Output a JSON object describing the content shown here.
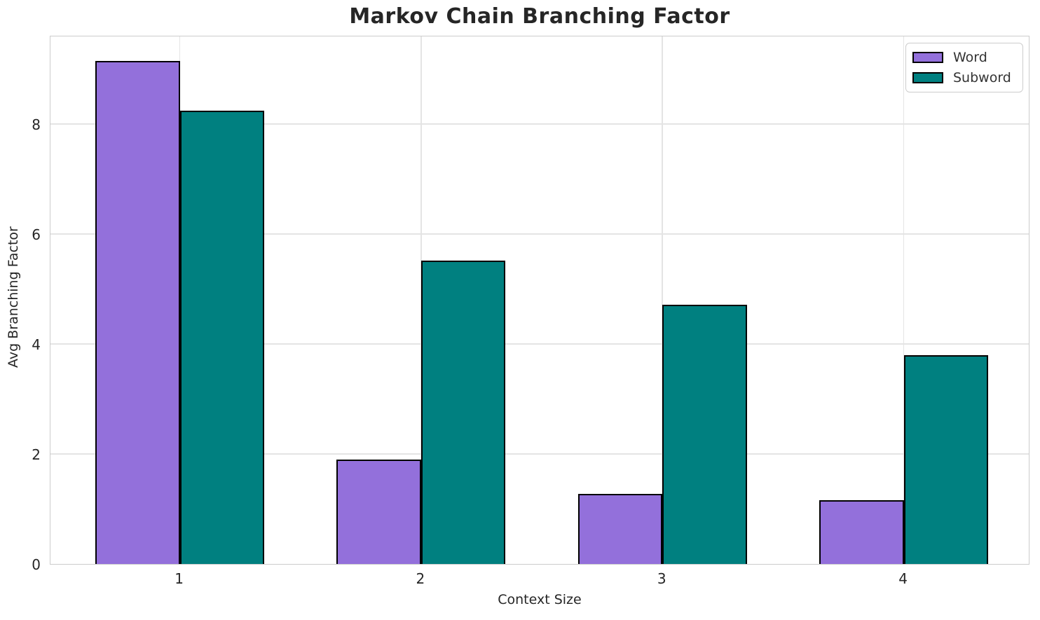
{
  "chart_data": {
    "type": "bar",
    "title": "Markov Chain Branching Factor",
    "xlabel": "Context Size",
    "ylabel": "Avg Branching Factor",
    "categories": [
      "1",
      "2",
      "3",
      "4"
    ],
    "series": [
      {
        "name": "Word",
        "color": "#9370DB",
        "values": [
          9.15,
          1.9,
          1.27,
          1.16
        ]
      },
      {
        "name": "Subword",
        "color": "#008080",
        "values": [
          8.25,
          5.52,
          4.72,
          3.8
        ]
      }
    ],
    "yticks": [
      0,
      2,
      4,
      6,
      8
    ],
    "ylim": [
      0,
      9.62
    ],
    "xlim": [
      -0.536,
      3.524
    ],
    "bar_width": 0.35,
    "bar_edge_color": "#000000",
    "grid": true,
    "legend_position": "upper right"
  }
}
